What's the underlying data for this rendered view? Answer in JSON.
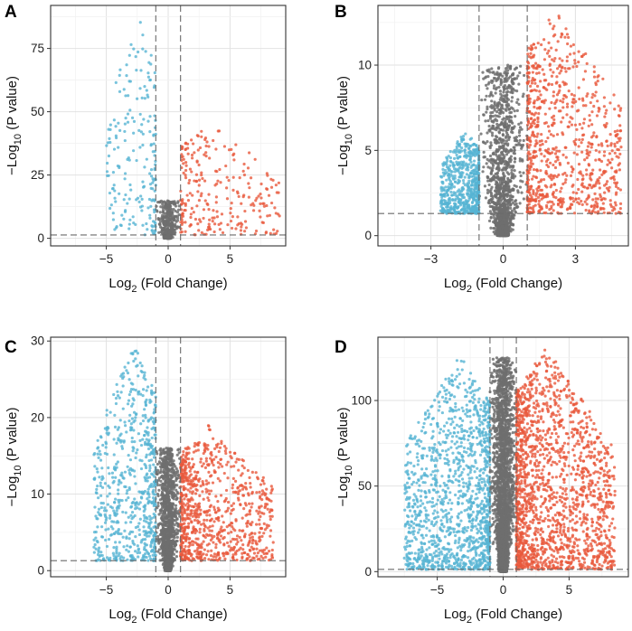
{
  "figure": {
    "panels": [
      "A",
      "B",
      "C",
      "D"
    ]
  },
  "colors": {
    "down": "#56b4d3",
    "not_significant": "#6e6e6e",
    "up": "#e8593c"
  },
  "chart_data": [
    {
      "panel": "A",
      "type": "scatter",
      "subtype": "volcano",
      "xlabel_main": "Log",
      "xlabel_sub": "2",
      "xlabel_rest": " (Fold Change)",
      "ylabel_main": "−Log",
      "ylabel_sub": "10",
      "ylabel_rest": " (P value)",
      "xlim": [
        -9.5,
        9.5
      ],
      "ylim": [
        -3,
        92
      ],
      "xticks": [
        -5,
        0,
        5
      ],
      "xtick_labels": [
        "−5",
        "0",
        "5"
      ],
      "yticks": [
        0,
        25,
        50,
        75
      ],
      "ytick_labels": [
        "0",
        "25",
        "50",
        "75"
      ],
      "fc_cutoff": [
        -1,
        1
      ],
      "p_cutoff": 1.3,
      "grid": true,
      "n_points": 900,
      "up_max_y": 45,
      "down_max_y": 88,
      "down_x_range": [
        -5,
        -1
      ],
      "up_x_range": [
        1,
        9
      ],
      "max_y_not_significant": 15
    },
    {
      "panel": "B",
      "type": "scatter",
      "subtype": "volcano",
      "xlabel_main": "Log",
      "xlabel_sub": "2",
      "xlabel_rest": " (Fold Change)",
      "ylabel_main": "−Log",
      "ylabel_sub": "10",
      "ylabel_rest": " (P value)",
      "xlim": [
        -5.2,
        5.2
      ],
      "ylim": [
        -0.6,
        13.5
      ],
      "xticks": [
        -3,
        0,
        3
      ],
      "xtick_labels": [
        "−3",
        "0",
        "3"
      ],
      "yticks": [
        0,
        5,
        10
      ],
      "ytick_labels": [
        "0",
        "5",
        "10"
      ],
      "fc_cutoff": [
        -1,
        1
      ],
      "p_cutoff": 1.3,
      "grid": true,
      "n_points": 3000,
      "up_max_y": 13.2,
      "down_max_y": 6.2,
      "down_x_range": [
        -2.6,
        -1
      ],
      "up_x_range": [
        1,
        4.9
      ],
      "max_y_not_significant": 10
    },
    {
      "panel": "C",
      "type": "scatter",
      "subtype": "volcano",
      "xlabel_main": "Log",
      "xlabel_sub": "2",
      "xlabel_rest": " (Fold Change)",
      "ylabel_main": "−Log",
      "ylabel_sub": "10",
      "ylabel_rest": " (P value)",
      "xlim": [
        -9.5,
        9.5
      ],
      "ylim": [
        -0.8,
        30.5
      ],
      "xticks": [
        -5,
        0,
        5
      ],
      "xtick_labels": [
        "−5",
        "0",
        "5"
      ],
      "yticks": [
        0,
        10,
        20,
        30
      ],
      "ytick_labels": [
        "0",
        "10",
        "20",
        "30"
      ],
      "fc_cutoff": [
        -1,
        1
      ],
      "p_cutoff": 1.3,
      "grid": true,
      "n_points": 3000,
      "up_max_y": 19,
      "down_max_y": 29.5,
      "down_x_range": [
        -6,
        -1
      ],
      "up_x_range": [
        1,
        8.5
      ],
      "max_y_not_significant": 16
    },
    {
      "panel": "D",
      "type": "scatter",
      "subtype": "volcano",
      "xlabel_main": "Log",
      "xlabel_sub": "2",
      "xlabel_rest": " (Fold Change)",
      "ylabel_main": "−Log",
      "ylabel_sub": "10",
      "ylabel_rest": " (P value)",
      "xlim": [
        -9.5,
        9.5
      ],
      "ylim": [
        -3,
        137
      ],
      "xticks": [
        -5,
        0,
        5
      ],
      "xtick_labels": [
        "−5",
        "0",
        "5"
      ],
      "yticks": [
        0,
        50,
        100
      ],
      "ytick_labels": [
        "0",
        "50",
        "100"
      ],
      "fc_cutoff": [
        -1,
        1
      ],
      "p_cutoff": 1.3,
      "grid": true,
      "n_points": 6000,
      "up_max_y": 131,
      "down_max_y": 127,
      "down_x_range": [
        -7.5,
        -1
      ],
      "up_x_range": [
        1,
        8.5
      ],
      "max_y_not_significant": 125
    }
  ]
}
